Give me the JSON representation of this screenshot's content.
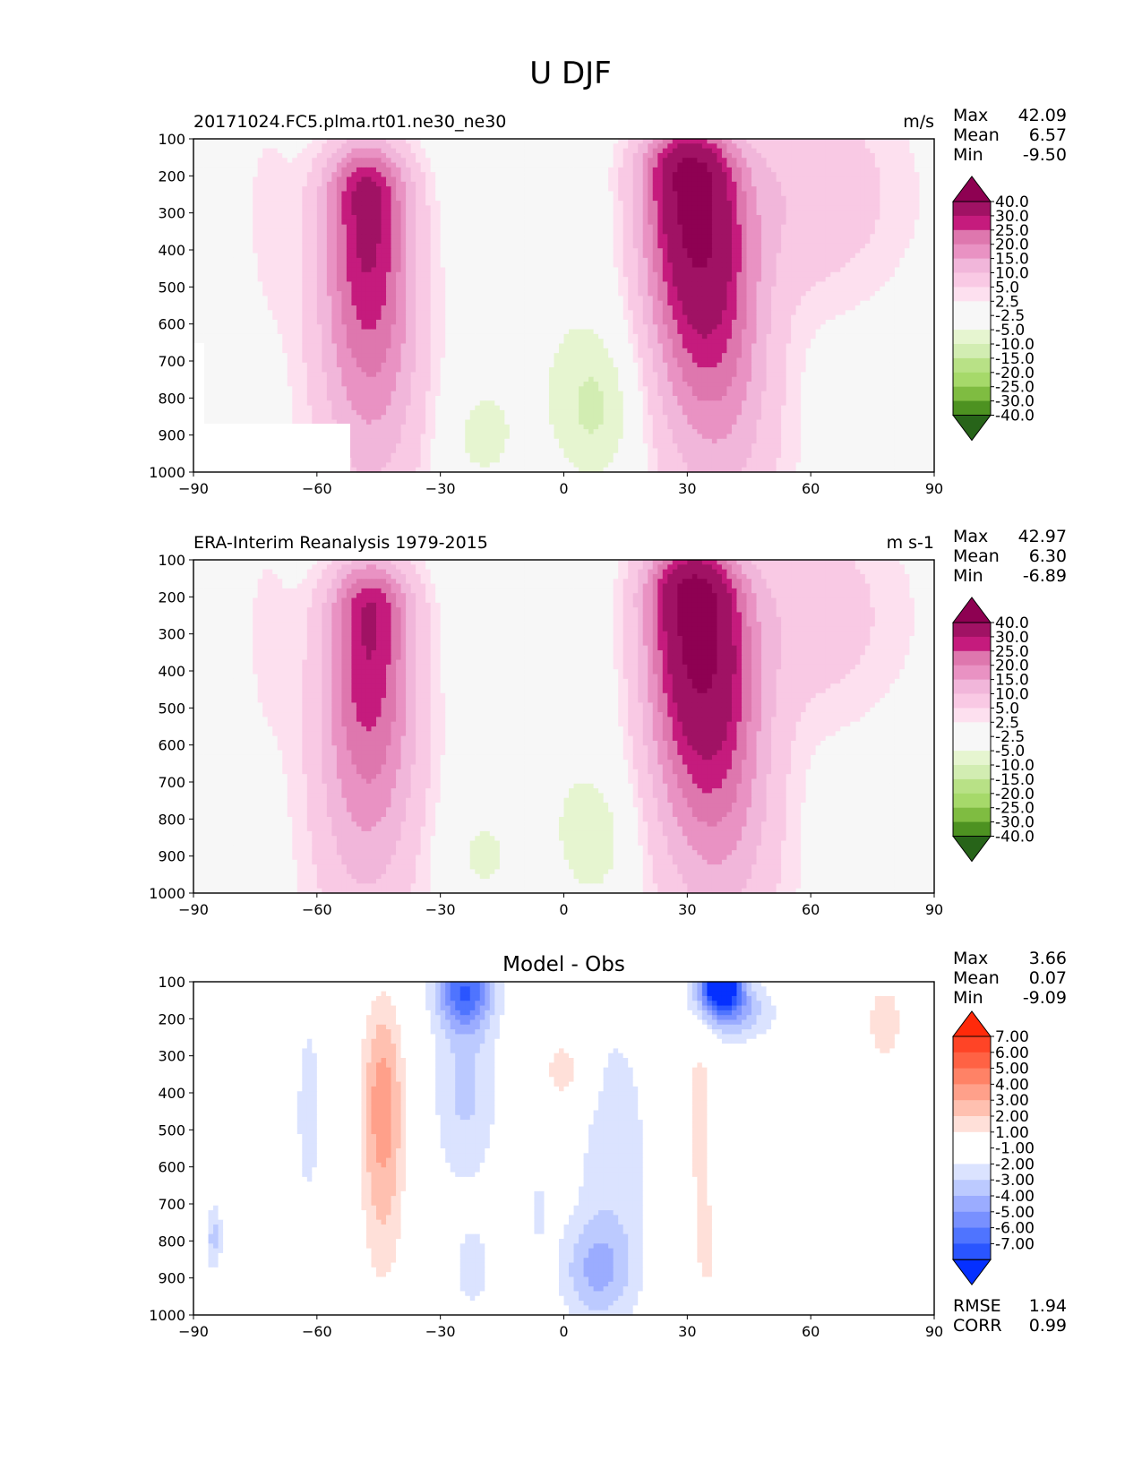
{
  "figure": {
    "title": "U DJF"
  },
  "colors": {
    "diverging_green_pink": [
      "#276419",
      "#4d9221",
      "#7fbc41",
      "#a6d96a",
      "#b8e186",
      "#d2edb2",
      "#e6f5d0",
      "#f7f7f7",
      "#f7f7f7",
      "#fde0ef",
      "#f9c9e4",
      "#f1b6da",
      "#e992c3",
      "#de77ae",
      "#c51b7d",
      "#a01264",
      "#8e0152"
    ],
    "diverging_blue_red": [
      "#0530ff",
      "#2a55ff",
      "#4f74ff",
      "#7890ff",
      "#9bacff",
      "#bccaff",
      "#dbe3ff",
      "#ffffff",
      "#ffffff",
      "#ffe0d9",
      "#ffc0b0",
      "#ffa08a",
      "#ff8266",
      "#ff6244",
      "#ff4426",
      "#ff2a0a"
    ]
  },
  "chart_data": [
    {
      "type": "contour",
      "panel": "model",
      "title": "20171024.FC5.plma.rt01.ne30_ne30",
      "units": "m/s",
      "x_ticks": [
        "−90",
        "−60",
        "−30",
        "0",
        "30",
        "60",
        "90"
      ],
      "y_ticks": [
        "100",
        "200",
        "300",
        "400",
        "500",
        "600",
        "700",
        "800",
        "900",
        "1000"
      ],
      "xlim": [
        -90,
        90
      ],
      "ylim": [
        1000,
        100
      ],
      "stats": {
        "max": "42.09",
        "mean": "6.57",
        "min": "-9.50"
      },
      "stat_labels": {
        "max": "Max",
        "mean": "Mean",
        "min": "Min"
      },
      "levels": [
        "-40.0",
        "-30.0",
        "-25.0",
        "-20.0",
        "-15.0",
        "-10.0",
        "-5.0",
        "-2.5",
        "2.5",
        "5.0",
        "10.0",
        "15.0",
        "20.0",
        "25.0",
        "30.0",
        "40.0"
      ],
      "features": [
        {
          "type": "jet",
          "lat": -48,
          "p": 260,
          "peak": 32
        },
        {
          "type": "jet",
          "lat": 31,
          "p": 210,
          "peak": 42
        },
        {
          "type": "easterly",
          "lat": 8,
          "p": 820,
          "peak": -9.5
        },
        {
          "type": "easterly",
          "lat": -20,
          "p": 880,
          "peak": -7
        }
      ]
    },
    {
      "type": "contour",
      "panel": "observations",
      "title": "ERA-Interim Reanalysis 1979-2015",
      "units": "m s-1",
      "x_ticks": [
        "−90",
        "−60",
        "−30",
        "0",
        "30",
        "60",
        "90"
      ],
      "y_ticks": [
        "100",
        "200",
        "300",
        "400",
        "500",
        "600",
        "700",
        "800",
        "900",
        "1000"
      ],
      "xlim": [
        -90,
        90
      ],
      "ylim": [
        1000,
        100
      ],
      "stats": {
        "max": "42.97",
        "mean": "6.30",
        "min": "-6.89"
      },
      "stat_labels": {
        "max": "Max",
        "mean": "Mean",
        "min": "Min"
      },
      "levels": [
        "-40.0",
        "-30.0",
        "-25.0",
        "-20.0",
        "-15.0",
        "-10.0",
        "-5.0",
        "-2.5",
        "2.5",
        "5.0",
        "10.0",
        "15.0",
        "20.0",
        "25.0",
        "30.0",
        "40.0"
      ],
      "features": [
        {
          "type": "jet",
          "lat": -48,
          "p": 240,
          "peak": 31
        },
        {
          "type": "jet",
          "lat": 31,
          "p": 200,
          "peak": 43
        },
        {
          "type": "easterly",
          "lat": 8,
          "p": 850,
          "peak": -6.9
        },
        {
          "type": "easterly",
          "lat": -20,
          "p": 880,
          "peak": -6
        }
      ]
    },
    {
      "type": "contour",
      "panel": "difference",
      "title": "Model - Obs",
      "units": "",
      "x_ticks": [
        "−90",
        "−60",
        "−30",
        "0",
        "30",
        "60",
        "90"
      ],
      "y_ticks": [
        "100",
        "200",
        "300",
        "400",
        "500",
        "600",
        "700",
        "800",
        "900",
        "1000"
      ],
      "xlim": [
        -90,
        90
      ],
      "ylim": [
        1000,
        100
      ],
      "stats": {
        "max": "3.66",
        "mean": "0.07",
        "min": "-9.09"
      },
      "stat_labels": {
        "max": "Max",
        "mean": "Mean",
        "min": "Min"
      },
      "extra_stats": {
        "rmse_label": "RMSE",
        "rmse": "1.94",
        "corr_label": "CORR",
        "corr": "0.99"
      },
      "levels": [
        "-7.00",
        "-6.00",
        "-5.00",
        "-4.00",
        "-3.00",
        "-2.00",
        "-1.00",
        "1.00",
        "2.00",
        "3.00",
        "4.00",
        "5.00",
        "6.00",
        "7.00"
      ],
      "features": [
        {
          "type": "positive",
          "lat": -44,
          "p": 380,
          "peak": 3.6
        },
        {
          "type": "positive",
          "lat": 0,
          "p": 340,
          "peak": 2.5
        },
        {
          "type": "positive",
          "lat": 32,
          "p": 450,
          "peak": 2.5
        },
        {
          "type": "positive",
          "lat": 78,
          "p": 200,
          "peak": 2.0
        },
        {
          "type": "negative",
          "lat": -25,
          "p": 120,
          "peak": -5
        },
        {
          "type": "negative",
          "lat": 38,
          "p": 100,
          "peak": -9.1
        },
        {
          "type": "negative",
          "lat": 8,
          "p": 880,
          "peak": -2.5
        }
      ]
    }
  ]
}
